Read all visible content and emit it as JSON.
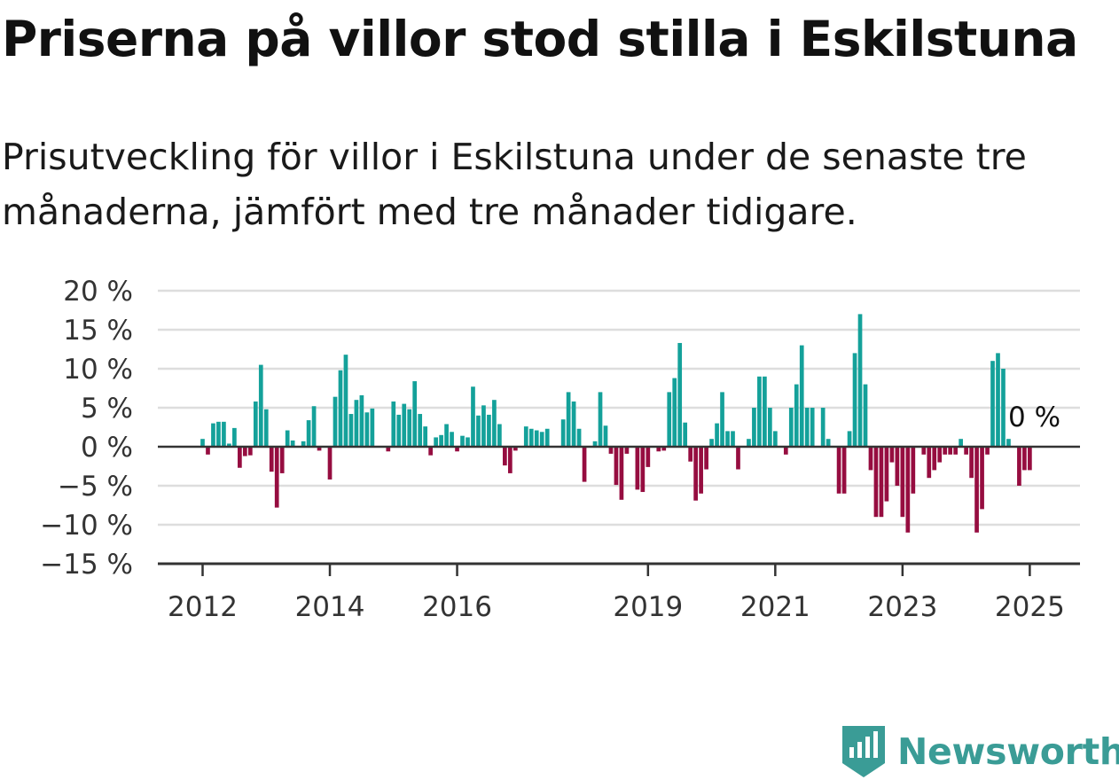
{
  "title": "Priserna på villor stod stilla i Eskilstuna",
  "subtitle": "Prisutveckling för villor i Eskilstuna under de senaste tre månaderna, jämfört med tre månader tidigare.",
  "brand": {
    "name": "Newsworthy",
    "icon": "newsworthy-logo-icon"
  },
  "chart_data": {
    "type": "bar",
    "xlabel": "",
    "ylabel": "",
    "ylim": [
      -15,
      20
    ],
    "yticks": [
      {
        "value": 20,
        "label": "20 %"
      },
      {
        "value": 15,
        "label": "15 %"
      },
      {
        "value": 10,
        "label": "10 %"
      },
      {
        "value": 5,
        "label": "5 %"
      },
      {
        "value": 0,
        "label": "0 %"
      },
      {
        "value": -5,
        "label": "−5 %"
      },
      {
        "value": -10,
        "label": "−10 %"
      },
      {
        "value": -15,
        "label": "−15 %"
      }
    ],
    "xticks": [
      {
        "label": "2012",
        "index": 0
      },
      {
        "label": "2014",
        "index": 24
      },
      {
        "label": "2016",
        "index": 48
      },
      {
        "label": "2019",
        "index": 84
      },
      {
        "label": "2021",
        "index": 108
      },
      {
        "label": "2023",
        "index": 132
      },
      {
        "label": "2025",
        "index": 156
      }
    ],
    "grid": true,
    "colors": {
      "positive": "#14a19a",
      "negative": "#960d40",
      "grid": "#dddddd",
      "axis": "#333333"
    },
    "last_value_label": "0 %",
    "values": [
      1,
      -1,
      3,
      3.2,
      3.2,
      0.4,
      2.4,
      -2.7,
      -1.2,
      -1.1,
      5.8,
      10.5,
      4.8,
      -3.2,
      -7.8,
      -3.4,
      2.1,
      0.8,
      0,
      0.7,
      3.4,
      5.2,
      -0.5,
      0,
      -4.2,
      6.4,
      9.8,
      11.8,
      4.2,
      6,
      6.6,
      4.4,
      4.9,
      0,
      0,
      -0.6,
      5.8,
      4.1,
      5.5,
      4.8,
      8.4,
      4.2,
      2.6,
      -1.1,
      1.2,
      1.5,
      2.9,
      1.9,
      -0.6,
      1.4,
      1.2,
      7.7,
      4,
      5.3,
      4.1,
      6,
      2.9,
      -2.4,
      -3.4,
      -0.5,
      0,
      2.6,
      2.3,
      2.1,
      1.9,
      2.3,
      0,
      0,
      3.5,
      7,
      5.8,
      2.3,
      -4.5,
      0,
      0.7,
      7,
      2.7,
      -0.9,
      -4.9,
      -6.8,
      -0.9,
      0,
      -5.5,
      -5.8,
      -2.6,
      0,
      -0.6,
      -0.5,
      7,
      8.8,
      13.3,
      3.1,
      -1.9,
      -6.9,
      -6,
      -2.9,
      1,
      3,
      7,
      2,
      2,
      -2.9,
      0,
      1,
      5,
      9,
      9,
      5,
      2,
      0,
      -1,
      5,
      8,
      13,
      5,
      5,
      0,
      5,
      1,
      0,
      -6,
      -6,
      2,
      12,
      17,
      8,
      -3,
      -9,
      -9,
      -7,
      -2,
      -5,
      -9,
      -11,
      -6,
      0,
      -1,
      -4,
      -3,
      -2,
      -1,
      -1,
      -1,
      1,
      -1,
      -4,
      -11,
      -8,
      -1,
      11,
      12,
      10,
      1,
      0,
      -5,
      -3,
      -3,
      0
    ]
  }
}
